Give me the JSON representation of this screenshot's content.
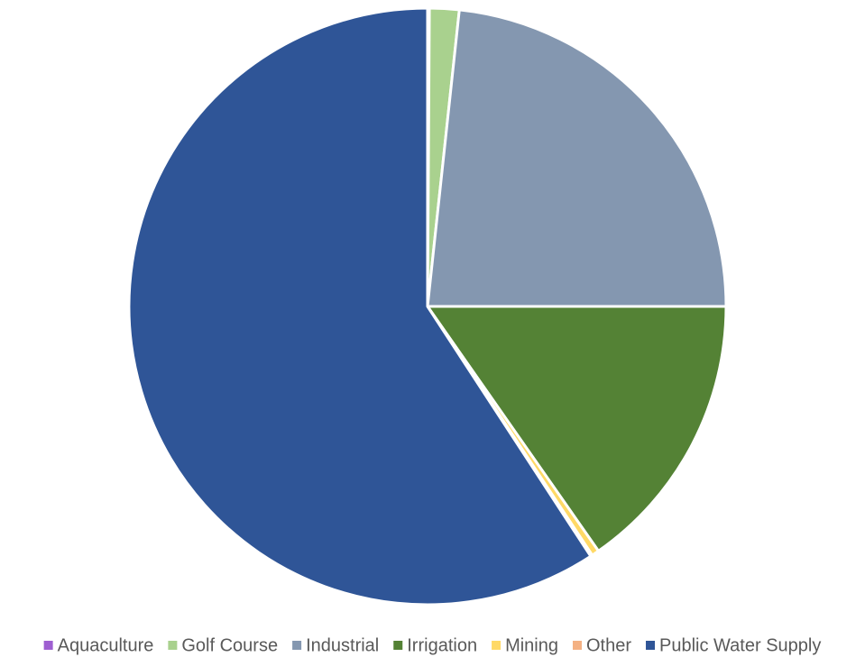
{
  "chart_data": {
    "type": "pie",
    "categories": [
      "Aquaculture",
      "Golf Course",
      "Industrial",
      "Irrigation",
      "Mining",
      "Other",
      "Public Water Supply"
    ],
    "values": [
      0.1,
      1.6,
      23.3,
      15.3,
      0.4,
      0.1,
      59.2
    ],
    "colors": [
      "#9e5fd1",
      "#a9d18e",
      "#8497b0",
      "#548235",
      "#ffd966",
      "#f4b183",
      "#2f5597"
    ],
    "legend": "bottom"
  }
}
